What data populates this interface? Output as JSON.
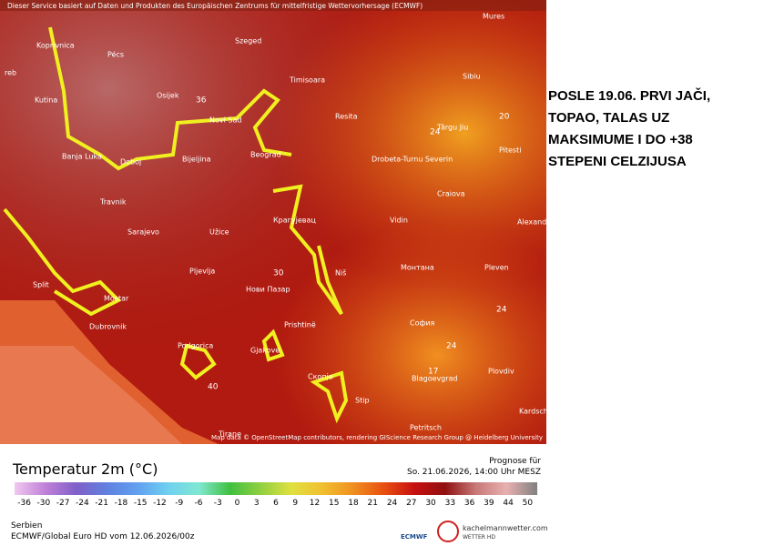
{
  "header": {
    "notice": "Dieser Service basiert auf Daten und Produkten des Europäischen Zentrums für mittelfristige Wettervorhersage (ECMWF)"
  },
  "map": {
    "places": [
      "Koprivnica",
      "Pécs",
      "Szeged",
      "Mures",
      "reb",
      "Kutina",
      "Osijek",
      "Timisoara",
      "Sibiu",
      "Novi Sad",
      "Resita",
      "Târgu Jiu",
      "Pitesti",
      "Banja Luka",
      "Doboj",
      "Bijeljina",
      "Beograd",
      "Drobeta-Turnu Severin",
      "Craiova",
      "Travnik",
      "Крагујевац",
      "Vidin",
      "Alexand",
      "Sarajevo",
      "Užice",
      "Монтана",
      "Pleven",
      "Split",
      "Mostar",
      "Pljevlja",
      "Нови Пазар",
      "Niš",
      "Dubrovnik",
      "Prishtinë",
      "София",
      "Podgorica",
      "Gjakove",
      "Скопје",
      "Blagoevgrad",
      "Plovdiv",
      "Stip",
      "Tirane",
      "Petritsch",
      "Kardsch"
    ],
    "value_labels": [
      "36",
      "20",
      "24",
      "24",
      "24",
      "17",
      "30",
      "40"
    ],
    "attribution": "Map data © OpenStreetMap contributors, rendering GIScience Research Group @ Heidelberg University"
  },
  "annotation": {
    "lines": [
      "POSLE 19.06. PRVI JAČI,",
      "TOPAO, TALAS UZ",
      "MAKSIMUME I DO +38",
      "STEPENI CELZIJUSA"
    ]
  },
  "legend": {
    "title": "Temperatur 2m (°C)",
    "ticks": [
      -36,
      -30,
      -27,
      -24,
      -21,
      -18,
      -15,
      -12,
      -9,
      -6,
      -3,
      0,
      3,
      6,
      9,
      12,
      15,
      18,
      21,
      24,
      27,
      30,
      33,
      36,
      39,
      44,
      50
    ]
  },
  "forecast": {
    "label": "Prognose für",
    "time": "So. 21.06.2026, 14:00 Uhr MESZ"
  },
  "footer": {
    "region": "Serbien",
    "model": "ECMWF/Global Euro HD vom 12.06.2026/00z",
    "ecmwf": "ECMWF",
    "site": "kachelmannwetter.com",
    "site_sub": "WETTER HD"
  }
}
